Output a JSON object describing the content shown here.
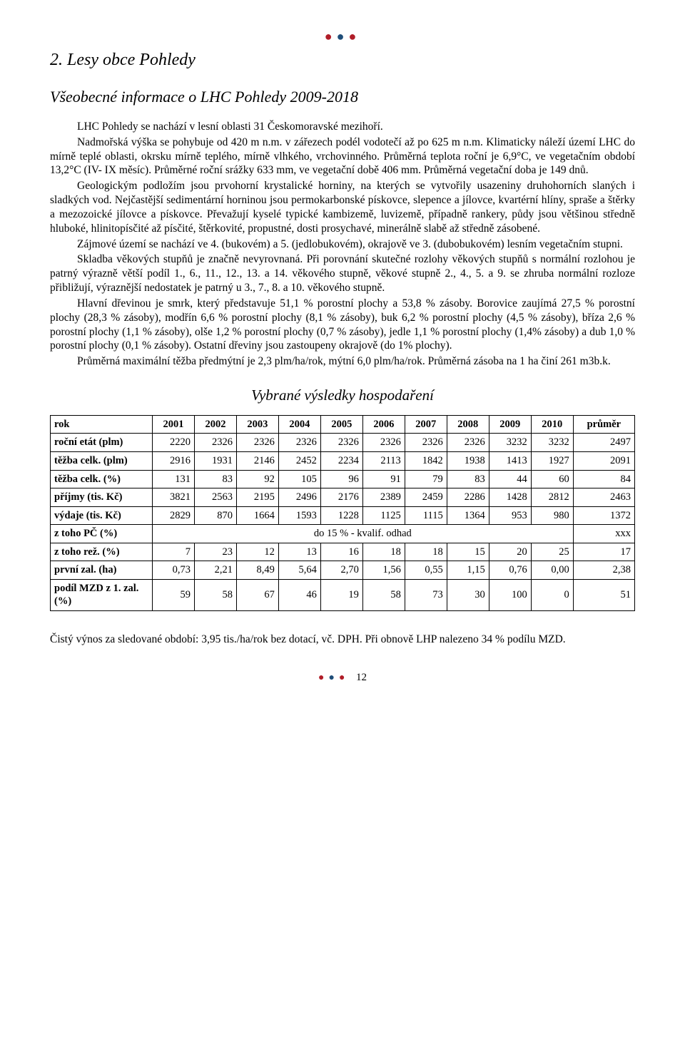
{
  "dots": {
    "color1": "#b01d28",
    "color2": "#1f4e79",
    "color3": "#b01d28"
  },
  "headings": {
    "h1": "2. Lesy obce Pohledy",
    "h2": "Všeobecné informace o LHC Pohledy 2009-2018",
    "h3": "Vybrané výsledky hospodaření"
  },
  "paragraphs": {
    "p1": "LHC Pohledy se nachází v lesní oblasti 31 Českomoravské mezihoří.",
    "p2": "Nadmořská výška se pohybuje od 420 m n.m. v zářezech podél vodotečí až po 625 m n.m. Klimaticky náleží území LHC do mírně teplé oblasti, okrsku mírně teplého, mírně vlhkého, vrchovinného. Průměrná teplota roční je 6,9°C, ve vegetačním období 13,2°C (IV- IX měsíc). Průměrné roční srážky 633 mm, ve vegetační době 406 mm. Průměrná vegetační doba je 149 dnů.",
    "p3": "Geologickým podložím jsou prvohorní krystalické horniny, na kterých se vytvořily usazeniny druhohorních slaných i sladkých vod. Nejčastější sedimentární horninou jsou permokarbonské pískovce, slepence a jílovce, kvartérní hlíny, spraše a štěrky a mezozoické jílovce a pískovce. Převažují kyselé typické kambizemě, luvizemě, případně rankery, půdy jsou většinou středně hluboké, hlinitopísčité až písčité, štěrkovité, propustné, dosti prosychavé, minerálně slabě až středně zásobené.",
    "p4": "Zájmové území se nachází ve 4. (bukovém) a 5. (jedlobukovém), okrajově ve 3. (dubobukovém) lesním vegetačním stupni.",
    "p5": "Skladba věkových stupňů je značně nevyrovnaná. Při porovnání skutečné rozlohy věkových stupňů s normální rozlohou je patrný výrazně větší podíl 1., 6., 11., 12., 13. a 14. věkového stupně, věkové stupně 2., 4., 5. a 9. se zhruba normální rozloze přibližují, výraznější nedostatek je patrný u 3., 7., 8. a 10. věkového stupně.",
    "p6": "Hlavní dřevinou je smrk, který představuje 51,1 % porostní plochy a 53,8 % zásoby. Borovice zaujímá 27,5 % porostní plochy (28,3 % zásoby), modřín 6,6 % porostní plochy (8,1 % zásoby), buk 6,2 % porostní plochy (4,5 % zásoby), bříza 2,6 % porostní plochy (1,1 % zásoby), olše 1,2 % porostní plochy (0,7 % zásoby), jedle 1,1 % porostní plochy (1,4% zásoby) a dub 1,0 % porostní plochy (0,1 % zásoby). Ostatní dřeviny jsou zastoupeny okrajově (do 1% plochy).",
    "p7": "Průměrná maximální těžba předmýtní je 2,3 plm/ha/rok, mýtní 6,0 plm/ha/rok. Průměrná zásoba na 1 ha činí 261 m3b.k."
  },
  "table": {
    "header_first": "rok",
    "years": [
      "2001",
      "2002",
      "2003",
      "2004",
      "2005",
      "2006",
      "2007",
      "2008",
      "2009",
      "2010"
    ],
    "avg_label": "průměr",
    "rows": [
      {
        "label": "roční etát (plm)",
        "vals": [
          "2220",
          "2326",
          "2326",
          "2326",
          "2326",
          "2326",
          "2326",
          "2326",
          "3232",
          "3232"
        ],
        "avg": "2497"
      },
      {
        "label": "těžba celk. (plm)",
        "vals": [
          "2916",
          "1931",
          "2146",
          "2452",
          "2234",
          "2113",
          "1842",
          "1938",
          "1413",
          "1927"
        ],
        "avg": "2091"
      },
      {
        "label": "těžba celk. (%)",
        "vals": [
          "131",
          "83",
          "92",
          "105",
          "96",
          "91",
          "79",
          "83",
          "44",
          "60"
        ],
        "avg": "84"
      },
      {
        "label": "příjmy (tis. Kč)",
        "vals": [
          "3821",
          "2563",
          "2195",
          "2496",
          "2176",
          "2389",
          "2459",
          "2286",
          "1428",
          "2812"
        ],
        "avg": "2463"
      },
      {
        "label": "výdaje (tis. Kč)",
        "vals": [
          "2829",
          "870",
          "1664",
          "1593",
          "1228",
          "1125",
          "1115",
          "1364",
          "953",
          "980"
        ],
        "avg": "1372"
      },
      {
        "label": "z toho PČ (%)",
        "span_text": "do 15 % - kvalif. odhad",
        "avg": "xxx"
      },
      {
        "label": "z toho rež. (%)",
        "vals": [
          "7",
          "23",
          "12",
          "13",
          "16",
          "18",
          "18",
          "15",
          "20",
          "25"
        ],
        "avg": "17"
      },
      {
        "label": "první zal. (ha)",
        "vals": [
          "0,73",
          "2,21",
          "8,49",
          "5,64",
          "2,70",
          "1,56",
          "0,55",
          "1,15",
          "0,76",
          "0,00"
        ],
        "avg": "2,38"
      },
      {
        "label": "podíl MZD z 1. zal. (%)",
        "vals": [
          "59",
          "58",
          "67",
          "46",
          "19",
          "58",
          "73",
          "30",
          "100",
          "0"
        ],
        "avg": "51"
      }
    ]
  },
  "below": "Čistý výnos za sledované období: 3,95 tis./ha/rok bez dotací, vč. DPH. Při obnově LHP nalezeno 34 % podílu MZD.",
  "page_number": "12",
  "footer_dots": {
    "color1": "#b01d28",
    "color2": "#1f4e79",
    "color3": "#b01d28"
  }
}
